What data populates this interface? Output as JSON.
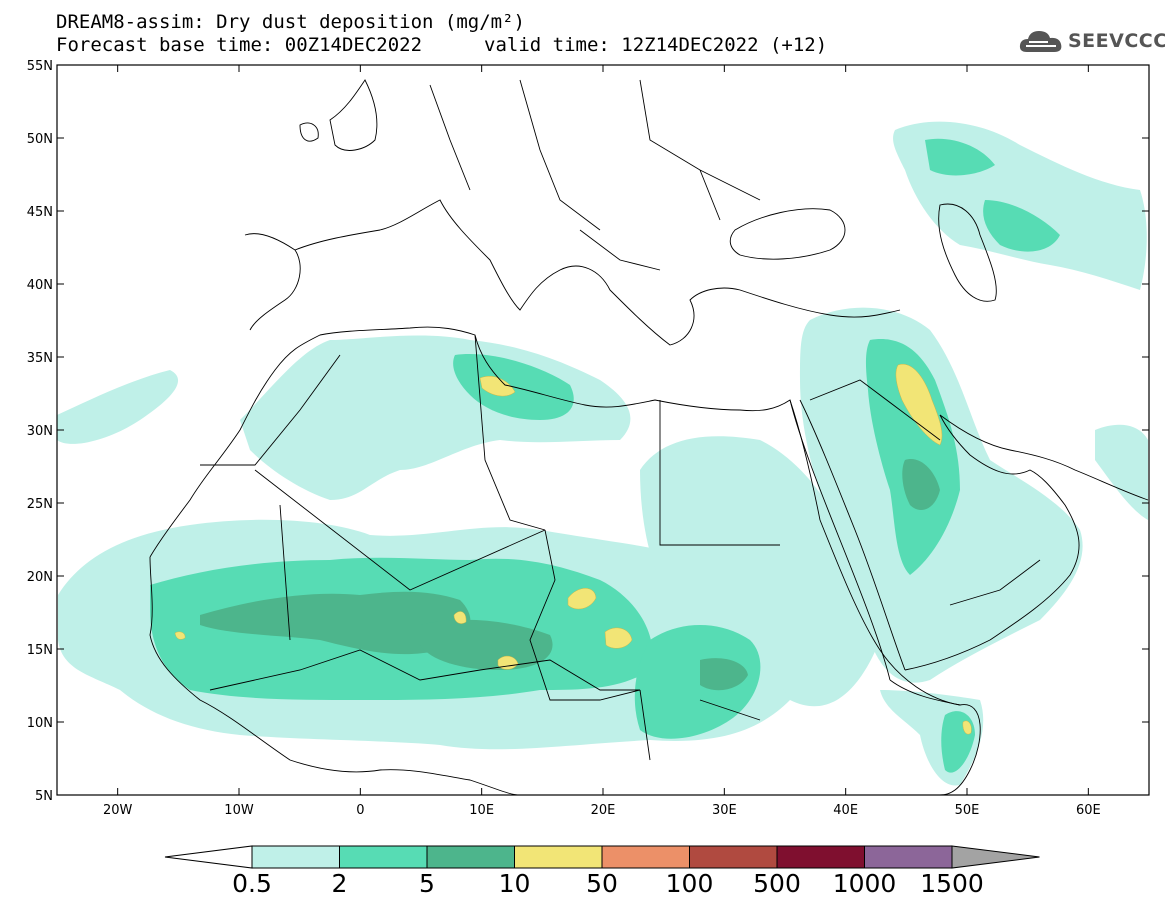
{
  "title": {
    "line1": "DREAM8-assim: Dry dust deposition (mg/m²)",
    "forecast_base": "Forecast base time: 00Z14DEC2022",
    "valid": "valid time: 12Z14DEC2022 (+12)"
  },
  "logo": {
    "text": "SEEVCCC",
    "icon": "cloud-icon"
  },
  "map": {
    "lat_ticks": [
      "55N",
      "50N",
      "45N",
      "40N",
      "35N",
      "30N",
      "25N",
      "20N",
      "15N",
      "10N",
      "5N"
    ],
    "lon_ticks": [
      "20W",
      "10W",
      "0",
      "10E",
      "20E",
      "30E",
      "40E",
      "50E",
      "60E"
    ],
    "extent": {
      "lon": [
        -25,
        65
      ],
      "lat": [
        5,
        55
      ]
    }
  },
  "colorbar": {
    "labels": [
      "0.5",
      "2",
      "5",
      "10",
      "50",
      "100",
      "500",
      "1000",
      "1500"
    ],
    "colors": [
      "#bff0e8",
      "#57dcb4",
      "#4db58c",
      "#f2e576",
      "#ec9068",
      "#b04a40",
      "#7f0f2f",
      "#8c6699",
      "#a3a3a3"
    ],
    "low_color": "#ffffff"
  }
}
